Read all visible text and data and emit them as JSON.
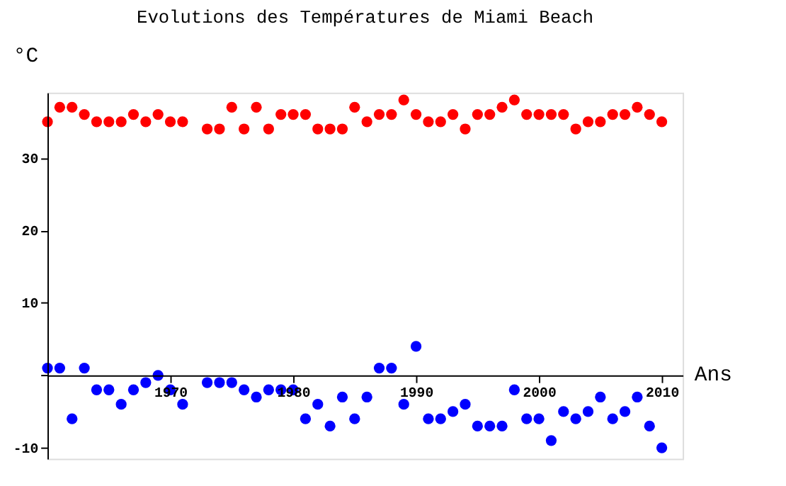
{
  "chart_data": {
    "type": "scatter",
    "title": "Evolutions des Températures de Miami Beach",
    "xlabel": "Ans",
    "ylabel": "°C",
    "x": [
      1960,
      1961,
      1962,
      1963,
      1964,
      1965,
      1966,
      1967,
      1968,
      1969,
      1970,
      1971,
      1973,
      1974,
      1975,
      1976,
      1977,
      1978,
      1979,
      1980,
      1981,
      1982,
      1983,
      1984,
      1985,
      1986,
      1987,
      1988,
      1989,
      1990,
      1991,
      1992,
      1993,
      1994,
      1995,
      1996,
      1997,
      1998,
      1999,
      2000,
      2001,
      2002,
      2003,
      2004,
      2005,
      2006,
      2007,
      2008,
      2009,
      2010
    ],
    "series": [
      {
        "color": "#ff0000",
        "values": [
          35,
          37,
          37,
          36,
          35,
          35,
          35,
          36,
          35,
          36,
          35,
          35,
          34,
          34,
          37,
          34,
          37,
          34,
          36,
          36,
          36,
          34,
          34,
          34,
          37,
          35,
          36,
          36,
          38,
          36,
          35,
          35,
          36,
          34,
          36,
          36,
          37,
          38,
          36,
          36,
          36,
          36,
          34,
          35,
          35,
          36,
          36,
          37,
          36,
          35
        ]
      },
      {
        "color": "#0000ff",
        "values": [
          1,
          1,
          -6,
          1,
          -2,
          -2,
          -4,
          -2,
          -1,
          0,
          -2,
          -4,
          -1,
          -1,
          -1,
          -2,
          -3,
          -2,
          -2,
          -2,
          -6,
          -4,
          -7,
          -3,
          -6,
          -3,
          1,
          1,
          -4,
          4,
          -6,
          -6,
          -5,
          -4,
          -7,
          -7,
          -7,
          -2,
          -6,
          -6,
          -9,
          -5,
          -6,
          -5,
          -3,
          -6,
          -5,
          -3,
          -7,
          -10
        ]
      }
    ],
    "xlim": [
      1960,
      2011.7
    ],
    "ylim": [
      -11.5,
      39
    ],
    "xticks": [
      1970,
      1980,
      1990,
      2000,
      2010
    ],
    "yticks": [
      -10,
      {
        "value": 0,
        "label": null
      },
      10,
      20,
      30
    ],
    "marker": "circle",
    "grid": false,
    "legend": false
  }
}
